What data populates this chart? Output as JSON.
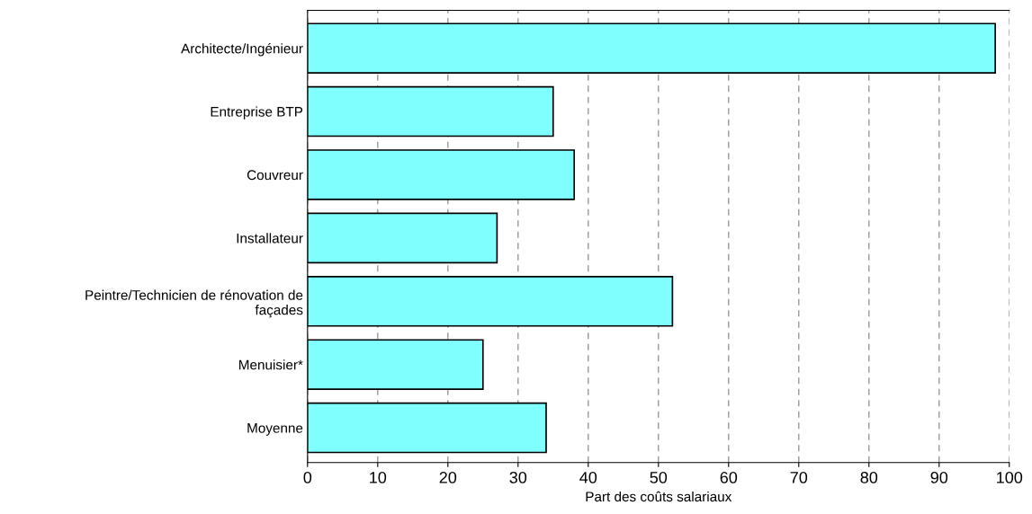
{
  "chart_data": {
    "type": "bar",
    "orientation": "horizontal",
    "xlabel": "Part des coûts salariaux",
    "categories": [
      "Architecte/Ingénieur",
      "Entreprise BTP",
      "Couvreur",
      "Installateur",
      "Peintre/Technicien de rénovation de\nfaçades",
      "Menuisier*",
      "Moyenne"
    ],
    "values": [
      98,
      35,
      38,
      27,
      52,
      25,
      34
    ],
    "color": "#80ffff",
    "xlim": [
      0,
      100
    ],
    "xticks": [
      0,
      10,
      20,
      30,
      40,
      50,
      60,
      70,
      80,
      90,
      100
    ],
    "grid": "x"
  }
}
